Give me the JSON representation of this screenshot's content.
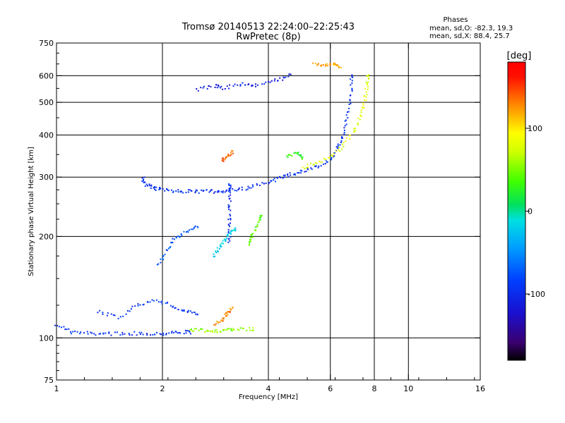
{
  "title": "Tromsø 20140513 22:24:00–22:25:43",
  "subtitle": "RwPretec (8p)",
  "phase_box": {
    "heading": "Phases",
    "line_o": "mean, sd,O: -82.3, 19.3",
    "line_x": "mean, sd,X:  88.4, 25.7"
  },
  "colorbar": {
    "unit": "[deg]",
    "ticks": [
      {
        "value": 100,
        "label": "100"
      },
      {
        "value": 0,
        "label": "0"
      },
      {
        "value": -100,
        "label": "-100"
      }
    ],
    "range": [
      -180,
      180
    ]
  },
  "chart_data": {
    "type": "scatter",
    "title": "Tromsø 20140513 22:24:00–22:25:43",
    "subtitle": "RwPretec (8p)",
    "xlabel": "Frequency [MHz]",
    "ylabel": "Stationary phase Virtual Height [km]",
    "x_scale": "log",
    "y_scale": "log",
    "xlim": [
      1,
      16
    ],
    "ylim": [
      75,
      750
    ],
    "x_ticks": [
      1,
      2,
      4,
      6,
      8,
      10,
      16
    ],
    "x_ticklabels": [
      "1",
      "2",
      "4",
      "6",
      "8",
      "10",
      "16"
    ],
    "y_ticks": [
      75,
      100,
      200,
      300,
      400,
      500,
      600,
      750
    ],
    "y_ticklabels": [
      "75",
      "100",
      "200",
      "300",
      "400",
      "500",
      "600",
      "750"
    ],
    "x_gridlines": [
      2,
      4,
      6,
      8,
      10
    ],
    "y_gridlines": [
      100,
      200,
      300,
      400,
      500,
      600
    ],
    "grid": true,
    "color_scale": "rainbow phase (-180 to 180 deg)",
    "traces": [
      {
        "x": [
          1.0,
          1.1,
          1.25,
          1.4,
          1.6,
          1.8,
          2.0,
          2.2,
          2.4
        ],
        "y": [
          110,
          104,
          103,
          103,
          103,
          103,
          103,
          104,
          104
        ],
        "phase": -95
      },
      {
        "x": [
          2.4,
          2.6,
          2.8,
          3.0,
          3.2,
          3.6
        ],
        "y": [
          106,
          105,
          105,
          105,
          106,
          106
        ],
        "phase": 55
      },
      {
        "x": [
          1.3,
          1.5,
          1.7,
          1.9,
          2.1,
          2.3,
          2.5
        ],
        "y": [
          120,
          115,
          125,
          130,
          125,
          120,
          118
        ],
        "phase": -90
      },
      {
        "x": [
          2.8,
          2.95,
          3.05,
          3.15
        ],
        "y": [
          110,
          113,
          118,
          122
        ],
        "phase": 130
      },
      {
        "x": [
          1.75,
          1.8,
          1.9,
          2.0,
          2.2,
          2.4,
          2.6,
          2.8,
          3.0,
          3.3,
          3.6,
          4.0,
          4.3,
          4.6,
          5.0,
          5.5,
          6.0,
          6.3,
          6.5,
          6.7,
          6.85,
          6.9
        ],
        "y": [
          300,
          285,
          278,
          275,
          273,
          272,
          272,
          272,
          273,
          275,
          280,
          290,
          298,
          305,
          312,
          322,
          338,
          365,
          395,
          450,
          520,
          600
        ],
        "phase": -95
      },
      {
        "x": [
          5.0,
          5.5,
          6.0,
          6.5,
          7.0,
          7.3,
          7.5,
          7.6,
          7.7
        ],
        "y": [
          320,
          330,
          345,
          370,
          410,
          450,
          500,
          550,
          600
        ],
        "phase": 80
      },
      {
        "x": [
          3.1,
          3.1,
          3.1,
          3.1,
          3.1
        ],
        "y": [
          190,
          215,
          240,
          265,
          285
        ],
        "phase": -100
      },
      {
        "x": [
          2.8,
          2.9,
          3.0,
          3.1,
          3.2
        ],
        "y": [
          175,
          185,
          195,
          205,
          210
        ],
        "phase": -20
      },
      {
        "x": [
          3.5,
          3.6,
          3.7,
          3.8
        ],
        "y": [
          190,
          200,
          215,
          230
        ],
        "phase": 40
      },
      {
        "x": [
          1.95,
          2.05,
          2.15,
          2.3,
          2.5
        ],
        "y": [
          165,
          180,
          195,
          205,
          215
        ],
        "phase": -75
      },
      {
        "x": [
          2.95,
          3.05,
          3.15
        ],
        "y": [
          335,
          345,
          355
        ],
        "phase": 140
      },
      {
        "x": [
          4.5,
          4.8,
          5.0
        ],
        "y": [
          345,
          355,
          340
        ],
        "phase": 30
      },
      {
        "x": [
          2.5,
          2.8,
          3.0,
          3.4,
          3.7,
          4.2,
          4.6
        ],
        "y": [
          545,
          560,
          550,
          570,
          560,
          580,
          600
        ],
        "phase": -110
      },
      {
        "x": [
          5.4,
          5.8,
          6.1,
          6.4
        ],
        "y": [
          650,
          640,
          650,
          640
        ],
        "phase": 120
      }
    ]
  }
}
